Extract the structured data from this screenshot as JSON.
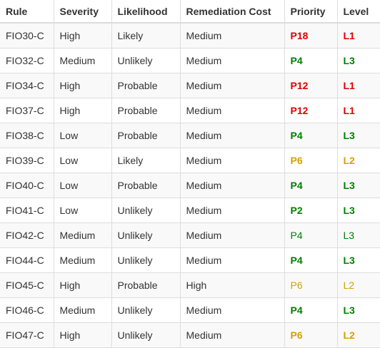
{
  "colors": {
    "red": "#e00000",
    "green": "#008000",
    "yellow": "#d4a100"
  },
  "headers": [
    "Rule",
    "Severity",
    "Likelihood",
    "Remediation Cost",
    "Priority",
    "Level"
  ],
  "rows": [
    {
      "rule": "FIO30-C",
      "severity": "High",
      "likelihood": "Likely",
      "cost": "Medium",
      "priority": "P18",
      "level": "L1",
      "color": "red",
      "bold": true
    },
    {
      "rule": "FIO32-C",
      "severity": "Medium",
      "likelihood": "Unlikely",
      "cost": "Medium",
      "priority": "P4",
      "level": "L3",
      "color": "green",
      "bold": true
    },
    {
      "rule": "FIO34-C",
      "severity": "High",
      "likelihood": "Probable",
      "cost": "Medium",
      "priority": "P12",
      "level": "L1",
      "color": "red",
      "bold": true
    },
    {
      "rule": "FIO37-C",
      "severity": "High",
      "likelihood": "Probable",
      "cost": "Medium",
      "priority": "P12",
      "level": "L1",
      "color": "red",
      "bold": true
    },
    {
      "rule": "FIO38-C",
      "severity": "Low",
      "likelihood": "Probable",
      "cost": "Medium",
      "priority": "P4",
      "level": "L3",
      "color": "green",
      "bold": true
    },
    {
      "rule": "FIO39-C",
      "severity": "Low",
      "likelihood": "Likely",
      "cost": "Medium",
      "priority": "P6",
      "level": "L2",
      "color": "yellow",
      "bold": true
    },
    {
      "rule": "FIO40-C",
      "severity": "Low",
      "likelihood": "Probable",
      "cost": "Medium",
      "priority": "P4",
      "level": "L3",
      "color": "green",
      "bold": true
    },
    {
      "rule": "FIO41-C",
      "severity": "Low",
      "likelihood": "Unlikely",
      "cost": "Medium",
      "priority": "P2",
      "level": "L3",
      "color": "green",
      "bold": true
    },
    {
      "rule": "FIO42-C",
      "severity": "Medium",
      "likelihood": "Unlikely",
      "cost": "Medium",
      "priority": "P4",
      "level": "L3",
      "color": "green",
      "bold": false
    },
    {
      "rule": "FIO44-C",
      "severity": "Medium",
      "likelihood": "Unlikely",
      "cost": "Medium",
      "priority": "P4",
      "level": "L3",
      "color": "green",
      "bold": true
    },
    {
      "rule": "FIO45-C",
      "severity": "High",
      "likelihood": "Probable",
      "cost": "High",
      "priority": "P6",
      "level": "L2",
      "color": "yellow",
      "bold": false
    },
    {
      "rule": "FIO46-C",
      "severity": "Medium",
      "likelihood": "Unlikely",
      "cost": "Medium",
      "priority": "P4",
      "level": "L3",
      "color": "green",
      "bold": true
    },
    {
      "rule": "FIO47-C",
      "severity": "High",
      "likelihood": "Unlikely",
      "cost": "Medium",
      "priority": "P6",
      "level": "L2",
      "color": "yellow",
      "bold": true
    }
  ]
}
